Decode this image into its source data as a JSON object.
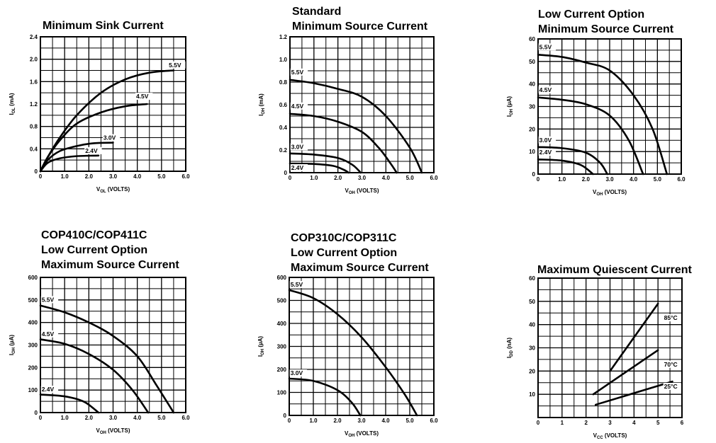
{
  "chart_data": [
    {
      "type": "line",
      "title_lines": [
        "Minimum Sink Current"
      ],
      "ylabel": "I_OL (mA)",
      "xlabel": "V_OL (VOLTS)",
      "xlim": [
        0,
        6
      ],
      "ylim": [
        0,
        2.4
      ],
      "x_ticks": [
        0,
        1,
        2,
        3,
        4,
        5,
        6
      ],
      "x_tick_labels": [
        "0",
        "1.0",
        "2.0",
        "3.0",
        "4.0",
        "5.0",
        "6.0"
      ],
      "y_ticks": [
        0,
        0.4,
        0.8,
        1.2,
        1.6,
        2.0,
        2.4
      ],
      "y_tick_labels": [
        "0",
        "0.4",
        "0.8",
        "1.2",
        "1.6",
        "2.0",
        "2.4"
      ],
      "grid": true,
      "series": [
        {
          "name": "5.5V",
          "points": [
            [
              0,
              0
            ],
            [
              0.3,
              0.25
            ],
            [
              0.8,
              0.6
            ],
            [
              1.5,
              1.0
            ],
            [
              2.5,
              1.4
            ],
            [
              3.5,
              1.64
            ],
            [
              4.5,
              1.76
            ],
            [
              5.5,
              1.8
            ]
          ],
          "label_at": [
            5.3,
            1.86
          ]
        },
        {
          "name": "4.5V",
          "points": [
            [
              0,
              0
            ],
            [
              0.3,
              0.25
            ],
            [
              0.8,
              0.55
            ],
            [
              1.5,
              0.85
            ],
            [
              2.5,
              1.05
            ],
            [
              3.5,
              1.16
            ],
            [
              4.4,
              1.2
            ]
          ],
          "label_at": [
            3.95,
            1.3
          ]
        },
        {
          "name": "3.0V",
          "points": [
            [
              0,
              0
            ],
            [
              0.3,
              0.2
            ],
            [
              0.8,
              0.36
            ],
            [
              1.5,
              0.45
            ],
            [
              2.2,
              0.5
            ],
            [
              3.0,
              0.51
            ]
          ],
          "label_at": [
            2.6,
            0.56
          ]
        },
        {
          "name": "2.4V",
          "points": [
            [
              0,
              0
            ],
            [
              0.3,
              0.15
            ],
            [
              0.8,
              0.23
            ],
            [
              1.5,
              0.27
            ],
            [
              2.4,
              0.28
            ]
          ],
          "label_at": [
            1.85,
            0.33
          ]
        }
      ]
    },
    {
      "type": "line",
      "title_lines": [
        "Standard",
        "Minimum Source Current"
      ],
      "ylabel": "I_OH (mA)",
      "xlabel": "V_OH (VOLTS)",
      "xlim": [
        0,
        6
      ],
      "ylim": [
        0,
        1.2
      ],
      "x_ticks": [
        0,
        1,
        2,
        3,
        4,
        5,
        6
      ],
      "x_tick_labels": [
        "0",
        "1.0",
        "2.0",
        "3.0",
        "4.0",
        "5.0",
        "6.0"
      ],
      "y_ticks": [
        0,
        0.2,
        0.4,
        0.6,
        0.8,
        1.0,
        1.2
      ],
      "y_tick_labels": [
        "0",
        "0.2",
        "0.4",
        "0.6",
        "0.8",
        "1.0",
        "1.2"
      ],
      "grid": true,
      "series": [
        {
          "name": "5.5V",
          "points": [
            [
              0,
              0.82
            ],
            [
              1.0,
              0.79
            ],
            [
              2.0,
              0.74
            ],
            [
              3.0,
              0.67
            ],
            [
              4.0,
              0.5
            ],
            [
              5.0,
              0.22
            ],
            [
              5.5,
              0
            ]
          ],
          "label_at": [
            0.05,
            0.87
          ]
        },
        {
          "name": "4.5V",
          "points": [
            [
              0,
              0.52
            ],
            [
              1.0,
              0.5
            ],
            [
              2.0,
              0.45
            ],
            [
              3.0,
              0.36
            ],
            [
              3.7,
              0.22
            ],
            [
              4.2,
              0.08
            ],
            [
              4.45,
              0
            ]
          ],
          "label_at": [
            0.05,
            0.57
          ]
        },
        {
          "name": "3.0V",
          "points": [
            [
              0,
              0.17
            ],
            [
              1.0,
              0.16
            ],
            [
              2.0,
              0.13
            ],
            [
              2.6,
              0.07
            ],
            [
              2.95,
              0
            ]
          ],
          "label_at": [
            0.05,
            0.21
          ]
        },
        {
          "name": "2.4V",
          "points": [
            [
              0,
              0.08
            ],
            [
              1.0,
              0.077
            ],
            [
              1.8,
              0.06
            ],
            [
              2.25,
              0.025
            ],
            [
              2.45,
              0
            ]
          ],
          "label_at": [
            0.05,
            0.025
          ]
        }
      ]
    },
    {
      "type": "line",
      "title_lines": [
        "Low Current Option",
        "Minimum Source Current"
      ],
      "ylabel": "I_OH (µA)",
      "xlabel": "V_OH (VOLTS)",
      "xlim": [
        0,
        6
      ],
      "ylim": [
        0,
        60
      ],
      "x_ticks": [
        0,
        1,
        2,
        3,
        4,
        5,
        6
      ],
      "x_tick_labels": [
        "0",
        "1.0",
        "2.0",
        "3.0",
        "4.0",
        "5.0",
        "6.0"
      ],
      "y_ticks": [
        0,
        10,
        20,
        30,
        40,
        50,
        60
      ],
      "y_tick_labels": [
        "0",
        "10",
        "20",
        "30",
        "40",
        "50",
        "60"
      ],
      "grid": true,
      "series": [
        {
          "name": "5.5V",
          "points": [
            [
              0,
              53
            ],
            [
              1.0,
              52
            ],
            [
              2.0,
              49.5
            ],
            [
              3.0,
              46
            ],
            [
              4.0,
              35
            ],
            [
              4.8,
              20
            ],
            [
              5.4,
              0
            ]
          ],
          "label_at": [
            0.05,
            55.5
          ]
        },
        {
          "name": "4.5V",
          "points": [
            [
              0,
              34
            ],
            [
              1.0,
              33
            ],
            [
              2.0,
              31
            ],
            [
              3.0,
              26
            ],
            [
              3.8,
              15
            ],
            [
              4.4,
              0
            ]
          ],
          "label_at": [
            0.05,
            36.5
          ]
        },
        {
          "name": "3.0V",
          "points": [
            [
              0,
              12
            ],
            [
              1.0,
              11.5
            ],
            [
              2.0,
              9.5
            ],
            [
              2.6,
              5
            ],
            [
              2.9,
              0
            ]
          ],
          "label_at": [
            0.05,
            14.2
          ]
        },
        {
          "name": "2.4V",
          "points": [
            [
              0,
              6.5
            ],
            [
              1.0,
              6
            ],
            [
              1.8,
              4
            ],
            [
              2.3,
              0
            ]
          ],
          "label_at": [
            0.05,
            8.8
          ]
        }
      ]
    },
    {
      "type": "line",
      "title_lines": [
        "COP410C/COP411C",
        "Low Current Option",
        "Maximum Source Current"
      ],
      "ylabel": "I_OH (µA)",
      "xlabel": "V_OH (VOLTS)",
      "xlim": [
        0,
        6
      ],
      "ylim": [
        0,
        600
      ],
      "x_ticks": [
        0,
        1,
        2,
        3,
        4,
        5,
        6
      ],
      "x_tick_labels": [
        "0",
        "1.0",
        "2.0",
        "3.0",
        "4.0",
        "5.0",
        "6.0"
      ],
      "y_ticks": [
        0,
        100,
        200,
        300,
        400,
        500,
        600
      ],
      "y_tick_labels": [
        "0",
        "100",
        "200",
        "300",
        "400",
        "500",
        "600"
      ],
      "grid": true,
      "series": [
        {
          "name": "5.5V",
          "points": [
            [
              0,
              475
            ],
            [
              1.0,
              445
            ],
            [
              2.0,
              400
            ],
            [
              3.0,
              340
            ],
            [
              4.0,
              250
            ],
            [
              4.8,
              120
            ],
            [
              5.5,
              0
            ]
          ],
          "label_at": [
            0.05,
            492
          ]
        },
        {
          "name": "4.5V",
          "points": [
            [
              0,
              325
            ],
            [
              1.0,
              305
            ],
            [
              2.0,
              260
            ],
            [
              3.0,
              190
            ],
            [
              3.8,
              100
            ],
            [
              4.45,
              0
            ]
          ],
          "label_at": [
            0.05,
            340
          ]
        },
        {
          "name": "2.4V",
          "points": [
            [
              0,
              80
            ],
            [
              1.0,
              72
            ],
            [
              1.8,
              48
            ],
            [
              2.4,
              0
            ]
          ],
          "label_at": [
            0.05,
            94
          ]
        }
      ]
    },
    {
      "type": "line",
      "title_lines": [
        "COP310C/COP311C",
        "Low Current Option",
        "Maximum Source Current"
      ],
      "ylabel": "I_OH (µA)",
      "xlabel": "V_OH (VOLTS)",
      "xlim": [
        0,
        6
      ],
      "ylim": [
        0,
        600
      ],
      "x_ticks": [
        0,
        1,
        2,
        3,
        4,
        5,
        6
      ],
      "x_tick_labels": [
        "0",
        "1.0",
        "2.0",
        "3.0",
        "4.0",
        "5.0",
        "6.0"
      ],
      "y_ticks": [
        0,
        100,
        200,
        300,
        400,
        500,
        600
      ],
      "y_tick_labels": [
        "0",
        "100",
        "200",
        "300",
        "400",
        "500",
        "600"
      ],
      "grid": true,
      "series": [
        {
          "name": "5.5V",
          "points": [
            [
              0,
              545
            ],
            [
              1.0,
              510
            ],
            [
              2.0,
              440
            ],
            [
              3.0,
              340
            ],
            [
              4.0,
              210
            ],
            [
              4.8,
              90
            ],
            [
              5.3,
              0
            ]
          ],
          "label_at": [
            0.05,
            560
          ]
        },
        {
          "name": "3.0V",
          "points": [
            [
              0,
              160
            ],
            [
              1.0,
              150
            ],
            [
              2.0,
              110
            ],
            [
              2.6,
              55
            ],
            [
              2.95,
              0
            ]
          ],
          "label_at": [
            0.05,
            175
          ]
        }
      ]
    },
    {
      "type": "line",
      "title_lines": [
        "Maximum Quiescent Current"
      ],
      "ylabel": "I_DD (nA)",
      "xlabel": "V_CC (VOLTS)",
      "xlim": [
        0,
        6
      ],
      "ylim": [
        0,
        60
      ],
      "x_ticks": [
        0,
        1,
        2,
        3,
        4,
        5,
        6
      ],
      "x_tick_labels": [
        "0",
        "1",
        "2",
        "3",
        "4",
        "5",
        "6"
      ],
      "y_ticks": [
        10,
        20,
        30,
        40,
        50,
        60
      ],
      "y_tick_labels": [
        "10",
        "20",
        "30",
        "40",
        "50",
        "60"
      ],
      "grid": true,
      "series": [
        {
          "name": "85°C",
          "points": [
            [
              3.0,
              20
            ],
            [
              5.0,
              49
            ]
          ],
          "label_at": [
            5.25,
            42
          ]
        },
        {
          "name": "70°C",
          "points": [
            [
              2.3,
              10
            ],
            [
              5.0,
              29
            ]
          ],
          "label_at": [
            5.25,
            22
          ]
        },
        {
          "name": "25°C",
          "points": [
            [
              2.4,
              5.5
            ],
            [
              5.6,
              15.5
            ]
          ],
          "label_at": [
            5.25,
            12.5
          ]
        }
      ]
    }
  ]
}
